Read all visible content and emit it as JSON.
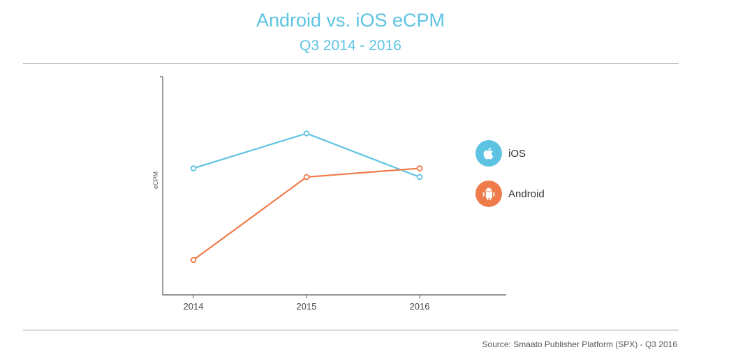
{
  "chart_data": {
    "type": "line",
    "title": "Android vs. iOS eCPM",
    "subtitle": "Q3 2014 - 2016",
    "xlabel": "",
    "ylabel": "eCPM",
    "x": [
      "2014",
      "2015",
      "2016"
    ],
    "ylim": [
      0,
      100
    ],
    "grid": false,
    "legend_position": "right",
    "series": [
      {
        "name": "iOS",
        "color": "#5ec3e3",
        "icon": "apple-icon",
        "values": [
          58,
          74,
          54
        ]
      },
      {
        "name": "Android",
        "color": "#ef7b4a",
        "icon": "android-icon",
        "values": [
          16,
          54,
          58
        ]
      }
    ]
  },
  "source": "Source: Smaato Publisher Platform (SPX) - Q3 2016"
}
